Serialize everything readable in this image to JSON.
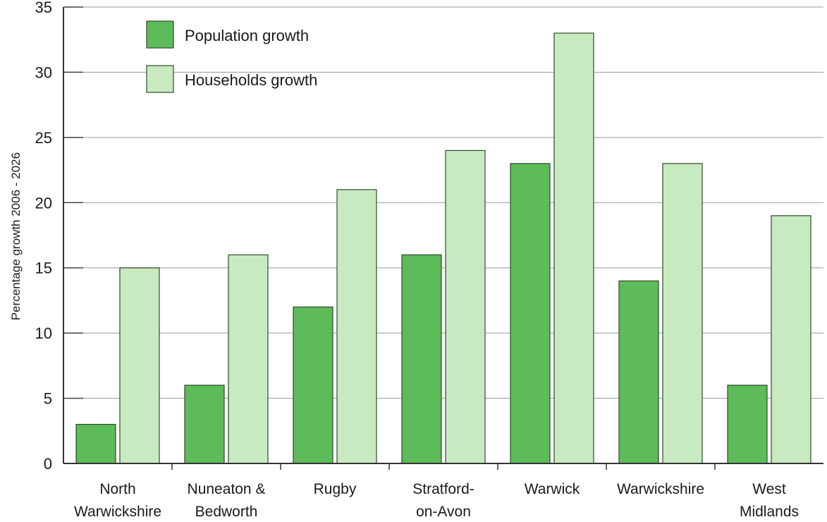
{
  "chart_data": {
    "type": "bar",
    "ylabel": "Percentage growth  2006 - 2026",
    "ylim": [
      0,
      35
    ],
    "yticks": [
      0,
      5,
      10,
      15,
      20,
      25,
      30,
      35
    ],
    "grid": true,
    "legend_position": "top-left",
    "categories": [
      [
        "North",
        "Warwickshire"
      ],
      [
        "Nuneaton &",
        "Bedworth"
      ],
      [
        "Rugby"
      ],
      [
        "Stratford-",
        "on-Avon"
      ],
      [
        "Warwick"
      ],
      [
        "Warwickshire"
      ],
      [
        "West",
        "Midlands"
      ]
    ],
    "series": [
      {
        "name": "Population growth",
        "color": "#5dbb5a",
        "values": [
          3,
          6,
          12,
          16,
          23,
          14,
          6
        ]
      },
      {
        "name": "Households growth",
        "color": "#c8eac0",
        "values": [
          15,
          16,
          21,
          24,
          33,
          23,
          19
        ]
      }
    ]
  }
}
